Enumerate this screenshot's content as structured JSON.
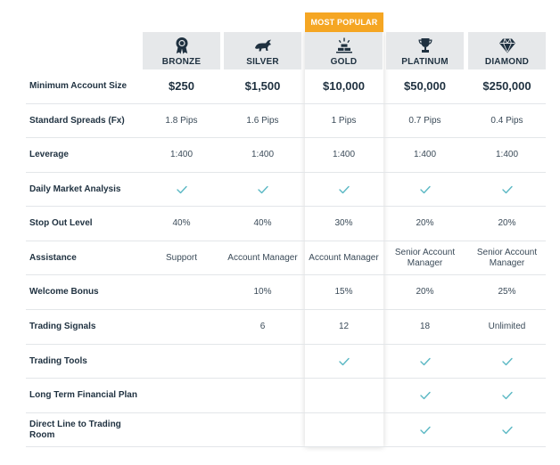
{
  "badge": "MOST POPULAR",
  "tiers": [
    {
      "name": "BRONZE",
      "icon": "award-ribbon-icon"
    },
    {
      "name": "SILVER",
      "icon": "bull-icon"
    },
    {
      "name": "GOLD",
      "icon": "gold-bars-icon"
    },
    {
      "name": "PLATINUM",
      "icon": "trophy-icon"
    },
    {
      "name": "DIAMOND",
      "icon": "diamond-icon"
    }
  ],
  "check_color": "#5bb8c4",
  "accent_color": "#f5a623",
  "rows": [
    {
      "label": "Minimum Account Size",
      "values": [
        "$250",
        "$1,500",
        "$10,000",
        "$50,000",
        "$250,000"
      ]
    },
    {
      "label": "Standard Spreads (Fx)",
      "values": [
        "1.8 Pips",
        "1.6 Pips",
        "1 Pips",
        "0.7 Pips",
        "0.4 Pips"
      ]
    },
    {
      "label": "Leverage",
      "values": [
        "1:400",
        "1:400",
        "1:400",
        "1:400",
        "1:400"
      ]
    },
    {
      "label": "Daily Market Analysis",
      "values": [
        "check",
        "check",
        "check",
        "check",
        "check"
      ]
    },
    {
      "label": "Stop Out Level",
      "values": [
        "40%",
        "40%",
        "30%",
        "20%",
        "20%"
      ]
    },
    {
      "label": "Assistance",
      "values": [
        "Support",
        "Account Manager",
        "Account Manager",
        "Senior Account Manager",
        "Senior Account Manager"
      ]
    },
    {
      "label": "Welcome Bonus",
      "values": [
        "",
        "10%",
        "15%",
        "20%",
        "25%"
      ]
    },
    {
      "label": "Trading Signals",
      "values": [
        "",
        "6",
        "12",
        "18",
        "Unlimited"
      ]
    },
    {
      "label": "Trading Tools",
      "values": [
        "",
        "",
        "check",
        "check",
        "check"
      ]
    },
    {
      "label": "Long Term Financial Plan",
      "values": [
        "",
        "",
        "",
        "check",
        "check"
      ]
    },
    {
      "label": "Direct Line to Trading Room",
      "values": [
        "",
        "",
        "",
        "check",
        "check"
      ]
    }
  ]
}
